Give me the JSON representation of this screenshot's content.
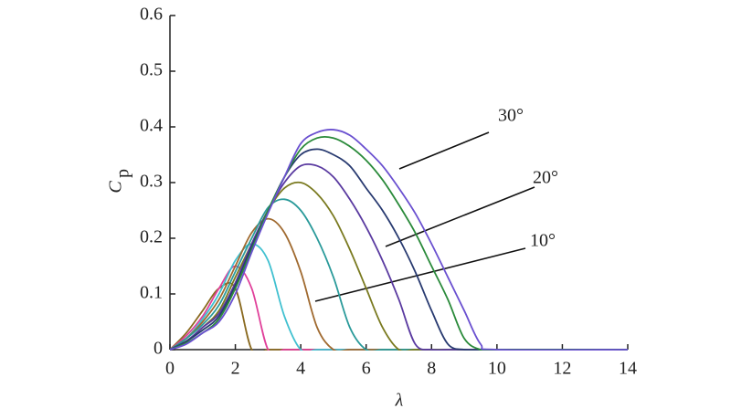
{
  "chart_data": {
    "type": "line",
    "x": [
      0,
      0.5,
      1,
      1.5,
      2,
      2.5,
      3,
      3.5,
      4,
      4.5,
      5,
      5.5,
      6,
      6.5,
      7,
      7.5,
      8,
      8.5,
      9,
      9.5,
      10,
      14
    ],
    "series": [
      {
        "color": "#8a6a20",
        "values": [
          0,
          0.03,
          0.07,
          0.11,
          0.11,
          0,
          0,
          0,
          0,
          0,
          0,
          0,
          0,
          0,
          0,
          0,
          0,
          0,
          0,
          0,
          0,
          0
        ]
      },
      {
        "color": "#e0409a",
        "values": [
          0,
          0.025,
          0.06,
          0.11,
          0.15,
          0.11,
          0,
          0,
          0,
          0,
          0,
          0,
          0,
          0,
          0,
          0,
          0,
          0,
          0,
          0,
          0,
          0
        ]
      },
      {
        "color": "#40c0d0",
        "values": [
          0,
          0.02,
          0.055,
          0.1,
          0.16,
          0.19,
          0.16,
          0.06,
          0,
          0,
          0,
          0,
          0,
          0,
          0,
          0,
          0,
          0,
          0,
          0,
          0,
          0
        ]
      },
      {
        "color": "#a06a30",
        "values": [
          0,
          0.02,
          0.05,
          0.09,
          0.15,
          0.21,
          0.235,
          0.21,
          0.14,
          0.04,
          0,
          0,
          0,
          0,
          0,
          0,
          0,
          0,
          0,
          0,
          0,
          0
        ]
      },
      {
        "color": "#2a9a9a",
        "values": [
          0,
          0.02,
          0.045,
          0.08,
          0.14,
          0.2,
          0.255,
          0.27,
          0.25,
          0.2,
          0.13,
          0.04,
          0,
          0,
          0,
          0,
          0,
          0,
          0,
          0,
          0,
          0
        ]
      },
      {
        "color": "#7a7a20",
        "values": [
          0,
          0.015,
          0.04,
          0.07,
          0.13,
          0.19,
          0.25,
          0.29,
          0.3,
          0.28,
          0.24,
          0.18,
          0.11,
          0.04,
          0,
          0,
          0,
          0,
          0,
          0,
          0,
          0
        ]
      },
      {
        "color": "#5a3aa0",
        "values": [
          0,
          0.015,
          0.04,
          0.065,
          0.12,
          0.19,
          0.25,
          0.3,
          0.33,
          0.33,
          0.31,
          0.27,
          0.22,
          0.16,
          0.09,
          0.01,
          0,
          0,
          0,
          0,
          0,
          0
        ]
      },
      {
        "color": "#283a70",
        "values": [
          0,
          0.015,
          0.035,
          0.06,
          0.115,
          0.185,
          0.25,
          0.31,
          0.35,
          0.36,
          0.35,
          0.33,
          0.29,
          0.25,
          0.2,
          0.14,
          0.07,
          0.01,
          0,
          0,
          0,
          0
        ]
      },
      {
        "color": "#2a8a3a",
        "values": [
          0,
          0.012,
          0.03,
          0.055,
          0.11,
          0.18,
          0.25,
          0.31,
          0.36,
          0.38,
          0.38,
          0.365,
          0.34,
          0.305,
          0.26,
          0.21,
          0.15,
          0.09,
          0.02,
          0,
          0,
          0
        ]
      },
      {
        "color": "#6a50d0",
        "values": [
          0,
          0.01,
          0.03,
          0.05,
          0.1,
          0.175,
          0.245,
          0.31,
          0.37,
          0.39,
          0.395,
          0.385,
          0.36,
          0.33,
          0.29,
          0.245,
          0.19,
          0.13,
          0.07,
          0.01,
          0,
          0
        ]
      }
    ],
    "xlim": [
      0,
      14
    ],
    "xticks": [
      0,
      2,
      4,
      6,
      8,
      10,
      12,
      14
    ],
    "ylim": [
      0,
      0.6
    ],
    "yticks": [
      0,
      0.1,
      0.2,
      0.3,
      0.4,
      0.5,
      0.6
    ],
    "xlabel": "λ",
    "ylabel": "C",
    "ylabel_sub": "p",
    "annotations": [
      "30°",
      "20°",
      "10°"
    ]
  }
}
